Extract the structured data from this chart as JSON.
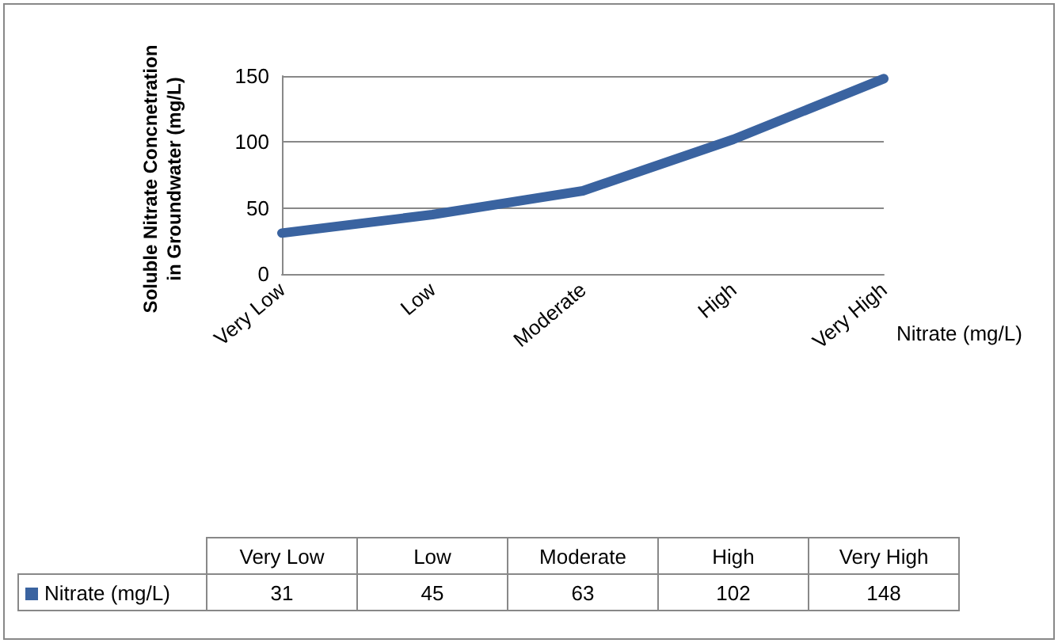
{
  "chart_data": {
    "type": "line",
    "ylabel": "Soluble Nitrate Concnetration in Groundwater (mg/L)",
    "categories": [
      "Very Low",
      "Low",
      "Moderate",
      "High",
      "Very High"
    ],
    "series": [
      {
        "name": "Nitrate (mg/L)",
        "color": "#3a63a0",
        "values": [
          31,
          45,
          63,
          102,
          148
        ]
      }
    ],
    "ylim": [
      0,
      150
    ],
    "yticks": [
      0,
      50,
      100,
      150
    ],
    "grid": "y",
    "marker": "none",
    "line_style": "solid",
    "data_labels": true
  }
}
